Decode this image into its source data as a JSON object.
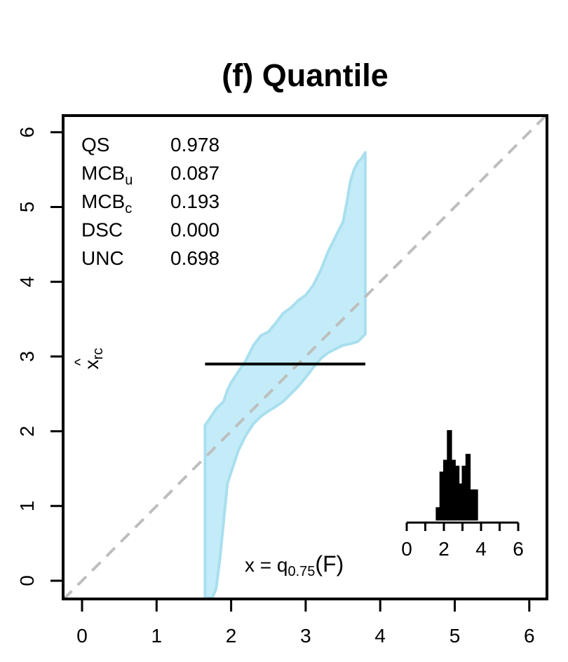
{
  "chart_data": {
    "type": "line",
    "title": "(f) Quantile",
    "xlabel": "",
    "ylabel": "x̂rc",
    "ylabel_base": "x",
    "ylabel_hat": "^",
    "ylabel_sub": "rc",
    "xlim": [
      0,
      6
    ],
    "ylim": [
      0,
      6
    ],
    "x_ticks": [
      "0",
      "1",
      "2",
      "3",
      "4",
      "5",
      "6"
    ],
    "y_ticks": [
      "0",
      "1",
      "2",
      "3",
      "4",
      "5",
      "6"
    ],
    "grid": false,
    "diagonal": {
      "from": [
        -0.25,
        -0.25
      ],
      "to": [
        6.25,
        6.25
      ],
      "color": "#bebebe",
      "style": "dashed"
    },
    "calibration_line": {
      "x": [
        1.65,
        3.8
      ],
      "y": [
        2.9,
        2.9
      ],
      "color": "#000000"
    },
    "consistency_band": {
      "color": "#c3ecf8",
      "edge_color": "#a9dfee",
      "upper": {
        "x": [
          1.65,
          1.7,
          1.8,
          1.9,
          1.95,
          2.0,
          2.1,
          2.2,
          2.3,
          2.4,
          2.5,
          2.6,
          2.7,
          2.8,
          2.9,
          3.0,
          3.1,
          3.2,
          3.3,
          3.4,
          3.5,
          3.55,
          3.6,
          3.65,
          3.7,
          3.75,
          3.8
        ],
        "y": [
          2.08,
          2.15,
          2.3,
          2.4,
          2.55,
          2.65,
          2.8,
          2.95,
          3.15,
          3.28,
          3.33,
          3.45,
          3.58,
          3.65,
          3.75,
          3.82,
          3.95,
          4.15,
          4.4,
          4.6,
          4.8,
          5.05,
          5.35,
          5.5,
          5.6,
          5.65,
          5.73
        ]
      },
      "lower": {
        "x": [
          1.65,
          1.75,
          1.8,
          1.85,
          1.9,
          1.95,
          2.0,
          2.05,
          2.1,
          2.2,
          2.3,
          2.4,
          2.5,
          2.6,
          2.7,
          2.8,
          2.9,
          3.0,
          3.1,
          3.2,
          3.3,
          3.4,
          3.5,
          3.6,
          3.7,
          3.8
        ],
        "y": [
          -0.25,
          -0.25,
          -0.1,
          0.3,
          0.8,
          1.3,
          1.45,
          1.6,
          1.75,
          1.95,
          2.1,
          2.2,
          2.27,
          2.33,
          2.4,
          2.5,
          2.6,
          2.72,
          2.85,
          2.97,
          3.05,
          3.1,
          3.15,
          3.17,
          3.2,
          3.3
        ]
      }
    },
    "stats": [
      {
        "name": "QS",
        "sub": "",
        "value": "0.978"
      },
      {
        "name": "MCB",
        "sub": "u",
        "value": "0.087"
      },
      {
        "name": "MCB",
        "sub": "c",
        "value": "0.193"
      },
      {
        "name": "DSC",
        "sub": "",
        "value": "0.000"
      },
      {
        "name": "UNC",
        "sub": "",
        "value": "0.698"
      }
    ],
    "annotation": {
      "prefix": "x = q",
      "sub": "0.75",
      "arg": "(F)"
    },
    "inset_histogram": {
      "type": "bar",
      "x_ticks": [
        "0",
        "2",
        "4",
        "6"
      ],
      "xlim": [
        0,
        6
      ],
      "bin_width": 0.2,
      "bins": [
        {
          "x": 1.6,
          "count": 2
        },
        {
          "x": 1.8,
          "count": 8
        },
        {
          "x": 2.0,
          "count": 10
        },
        {
          "x": 2.2,
          "count": 15
        },
        {
          "x": 2.4,
          "count": 10
        },
        {
          "x": 2.6,
          "count": 9
        },
        {
          "x": 2.8,
          "count": 6
        },
        {
          "x": 3.0,
          "count": 9
        },
        {
          "x": 3.2,
          "count": 11
        },
        {
          "x": 3.4,
          "count": 5
        },
        {
          "x": 3.6,
          "count": 5
        }
      ],
      "ymax": 15
    }
  }
}
